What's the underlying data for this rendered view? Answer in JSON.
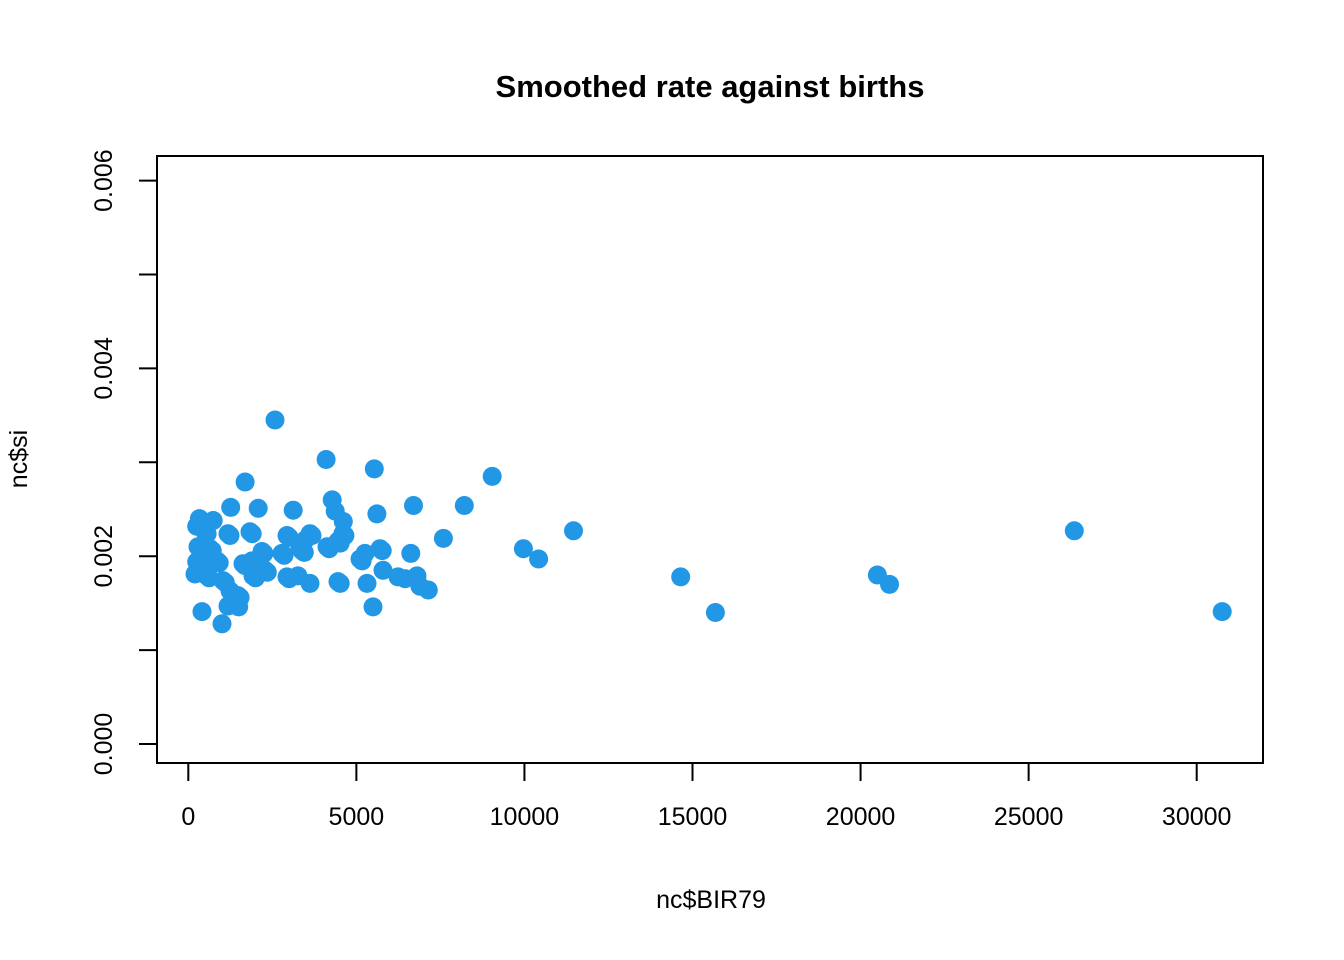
{
  "title": "Smoothed rate against births",
  "colors": {
    "point": "#2297E6",
    "axis": "#000000",
    "background": "#FFFFFF"
  },
  "chart_data": {
    "type": "scatter",
    "title": "Smoothed rate against births",
    "xlabel": "nc$BIR79",
    "ylabel": "nc$si",
    "x_ticks": [
      0,
      5000,
      10000,
      15000,
      20000,
      25000,
      30000
    ],
    "x_tick_labels": [
      "0",
      "5000",
      "10000",
      "15000",
      "20000",
      "25000",
      "30000"
    ],
    "y_ticks": [
      0,
      0.001,
      0.002,
      0.003,
      0.004,
      0.005,
      0.006
    ],
    "y_tick_labels": [
      "0.000",
      "",
      "0.002",
      "",
      "0.004",
      "",
      "0.006"
    ],
    "xlim": [
      -930,
      31970
    ],
    "ylim": [
      -0.0002,
      0.0063
    ],
    "grid": false,
    "legend_position": "none",
    "point_color": "#2297E6",
    "point_radius_px": 9.5,
    "points": [
      [
        2580,
        0.00345
      ],
      [
        4100,
        0.00303
      ],
      [
        5535,
        0.00293
      ],
      [
        9040,
        0.00285
      ],
      [
        1690,
        0.00279
      ],
      [
        8210,
        0.00254
      ],
      [
        6700,
        0.00254
      ],
      [
        4280,
        0.0026
      ],
      [
        1260,
        0.00252
      ],
      [
        2080,
        0.00251
      ],
      [
        3120,
        0.00249
      ],
      [
        4370,
        0.00248
      ],
      [
        5610,
        0.00245
      ],
      [
        330,
        0.0024
      ],
      [
        740,
        0.00238
      ],
      [
        4610,
        0.00237
      ],
      [
        250,
        0.00232
      ],
      [
        500,
        0.00226
      ],
      [
        1180,
        0.00224
      ],
      [
        1835,
        0.00226
      ],
      [
        2935,
        0.00222
      ],
      [
        3620,
        0.00224
      ],
      [
        4600,
        0.00224
      ],
      [
        11460,
        0.00227
      ],
      [
        26360,
        0.00227
      ],
      [
        290,
        0.0021
      ],
      [
        645,
        0.00208
      ],
      [
        3324,
        0.0021
      ],
      [
        3472,
        0.00217
      ],
      [
        4127,
        0.0021
      ],
      [
        4454,
        0.00216
      ],
      [
        5704,
        0.00208
      ],
      [
        2193,
        0.00205
      ],
      [
        2788,
        0.00203
      ],
      [
        3383,
        0.00206
      ],
      [
        5258,
        0.00203
      ],
      [
        6620,
        0.00203
      ],
      [
        9970,
        0.00208
      ],
      [
        7590,
        0.00219
      ],
      [
        250,
        0.00194
      ],
      [
        497,
        0.00192
      ],
      [
        854,
        0.00195
      ],
      [
        1628,
        0.00192
      ],
      [
        1896,
        0.00195
      ],
      [
        5109,
        0.00197
      ],
      [
        10420,
        0.00197
      ],
      [
        200,
        0.00181
      ],
      [
        556,
        0.00179
      ],
      [
        1033,
        0.00174
      ],
      [
        1925,
        0.00179
      ],
      [
        2283,
        0.00185
      ],
      [
        2937,
        0.00178
      ],
      [
        3264,
        0.00179
      ],
      [
        3621,
        0.00171
      ],
      [
        4454,
        0.00173
      ],
      [
        5317,
        0.00171
      ],
      [
        5793,
        0.00185
      ],
      [
        6240,
        0.00178
      ],
      [
        6805,
        0.00179
      ],
      [
        6450,
        0.00176
      ],
      [
        14650,
        0.00178
      ],
      [
        20500,
        0.0018
      ],
      [
        20860,
        0.0017
      ],
      [
        6890,
        0.00168
      ],
      [
        7140,
        0.00164
      ],
      [
        1241,
        0.00163
      ],
      [
        1479,
        0.00158
      ],
      [
        1182,
        0.00147
      ],
      [
        1500,
        0.00146
      ],
      [
        5496,
        0.00146
      ],
      [
        408,
        0.00141
      ],
      [
        15680,
        0.0014
      ],
      [
        30760,
        0.00141
      ],
      [
        1003,
        0.00128
      ],
      [
        560,
        0.00224
      ],
      [
        1240,
        0.00222
      ],
      [
        1900,
        0.00224
      ],
      [
        3000,
        0.0022
      ],
      [
        3680,
        0.00222
      ],
      [
        4660,
        0.00222
      ],
      [
        350,
        0.00208
      ],
      [
        710,
        0.00206
      ],
      [
        920,
        0.00193
      ],
      [
        1690,
        0.0019
      ],
      [
        1960,
        0.00193
      ],
      [
        2250,
        0.00203
      ],
      [
        2850,
        0.00201
      ],
      [
        3450,
        0.00204
      ],
      [
        3390,
        0.00212
      ],
      [
        4190,
        0.00208
      ],
      [
        4520,
        0.00214
      ],
      [
        5170,
        0.00195
      ],
      [
        5770,
        0.00206
      ],
      [
        620,
        0.00177
      ],
      [
        1100,
        0.00172
      ],
      [
        2000,
        0.00177
      ],
      [
        2350,
        0.00183
      ],
      [
        3000,
        0.00176
      ],
      [
        4520,
        0.00171
      ],
      [
        1540,
        0.00156
      ]
    ]
  }
}
